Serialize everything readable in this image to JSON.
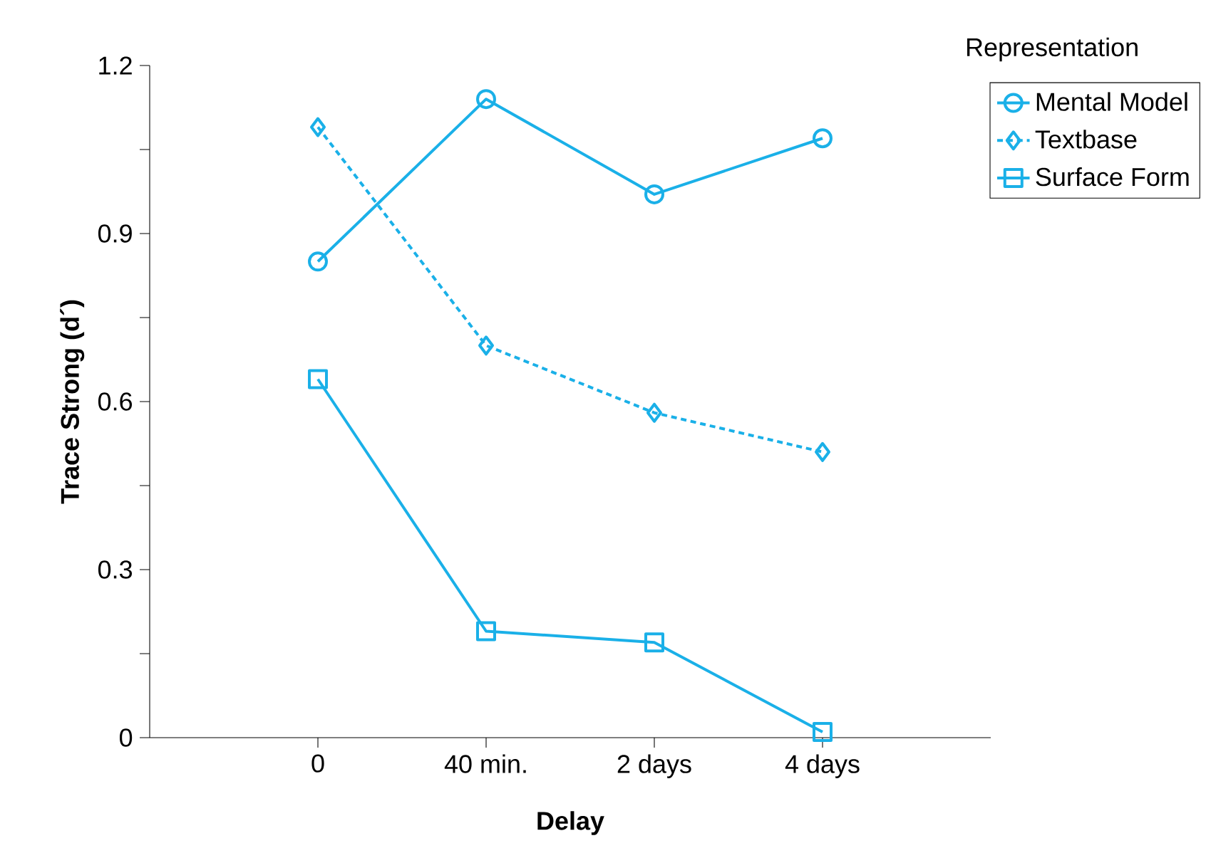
{
  "chart_data": {
    "type": "line",
    "xlabel": "Delay",
    "ylabel": "Trace Strong (d´)",
    "legend_title": "Representation",
    "legend": "top right",
    "grid": false,
    "categories": [
      "0",
      "40 min.",
      "2 days",
      "4 days"
    ],
    "ylim": [
      0,
      1.2
    ],
    "yticks": [
      0,
      {
        "value": 0.15,
        "label": null
      },
      0.3,
      {
        "value": 0.45,
        "label": null
      },
      0.6,
      {
        "value": 0.75,
        "label": null
      },
      0.9,
      {
        "value": 1.05,
        "label": null
      },
      1.2
    ],
    "series": [
      {
        "name": "Mental Model",
        "color": "#1ab0e8",
        "marker": "circle",
        "line_style": "solid",
        "values": [
          0.85,
          1.14,
          0.97,
          1.07
        ]
      },
      {
        "name": "Textbase",
        "color": "#1ab0e8",
        "marker": "diamond",
        "line_style": "dashed",
        "values": [
          1.09,
          0.7,
          0.58,
          0.51
        ]
      },
      {
        "name": "Surface Form",
        "color": "#1ab0e8",
        "marker": "square",
        "line_style": "solid",
        "values": [
          0.64,
          0.19,
          0.17,
          0.01
        ]
      }
    ]
  }
}
